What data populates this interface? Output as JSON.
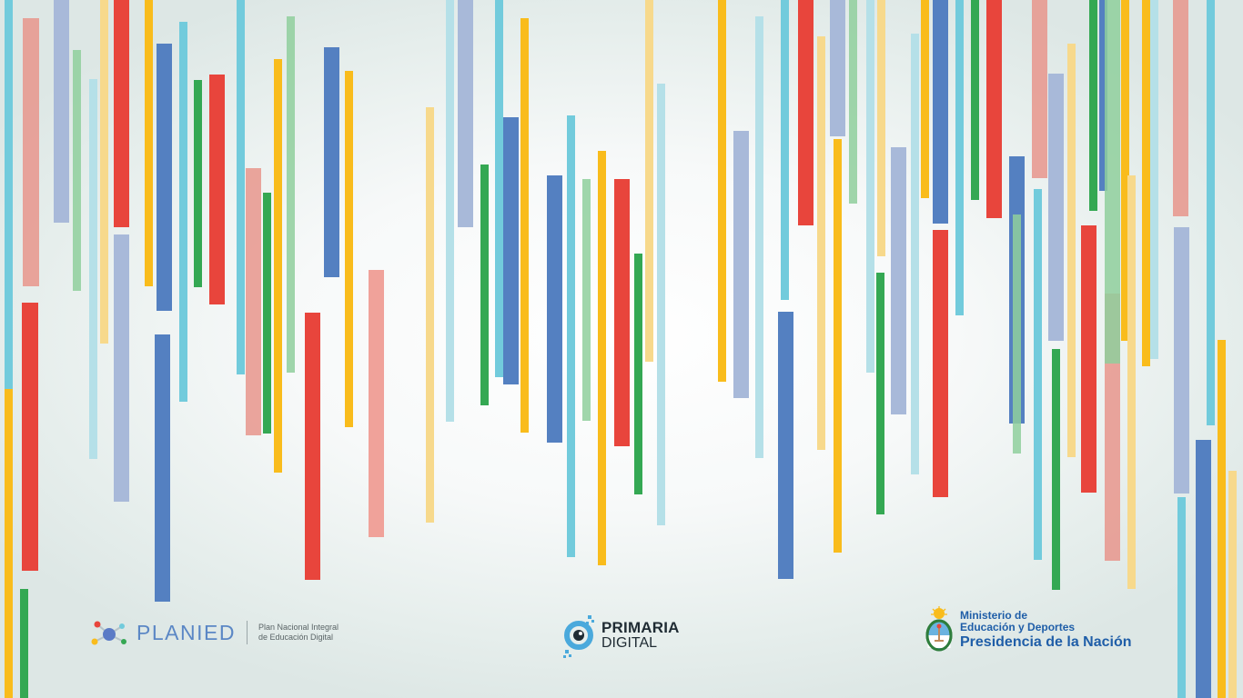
{
  "logos": {
    "planied": {
      "name": "PLANIED",
      "subtitle_line1": "Plan Nacional Integral",
      "subtitle_line2": "de Educación Digital"
    },
    "primaria": {
      "line1": "PRIMARIA",
      "line2": "DIGITAL"
    },
    "ministerio": {
      "line1": "Ministerio de",
      "line2": "Educación y Deportes",
      "line3": "Presidencia de la Nación"
    }
  },
  "palette": {
    "red": "#e8453c",
    "blue": "#5480c1",
    "cyan": "#72cbdc",
    "yellow": "#f9bc1c",
    "green": "#34a853",
    "brand_blue": "#1f5ea8"
  }
}
